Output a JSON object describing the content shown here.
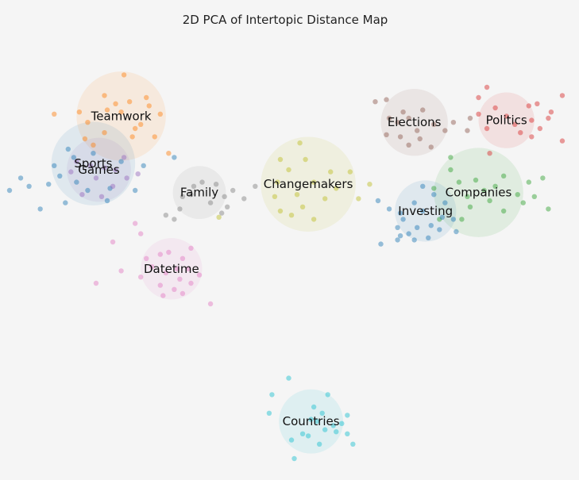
{
  "chart_data": {
    "type": "scatter",
    "title": "2D PCA of Intertopic Distance Map",
    "xlabel": "",
    "ylabel": "",
    "xlim": [
      -10,
      10
    ],
    "ylim": [
      -10,
      10
    ],
    "grid": false,
    "legend": "none",
    "axes_visible": false,
    "clusters": [
      {
        "label": "Teamwork",
        "color": "#ff7f0e",
        "center": [
          -6.0,
          6.6
        ],
        "radius": 1.6
      },
      {
        "label": "Sports",
        "color": "#1f77b4",
        "center": [
          -7.0,
          4.3
        ],
        "radius": 1.5
      },
      {
        "label": "Games",
        "color": "#9467bd",
        "center": [
          -6.8,
          4.0
        ],
        "radius": 1.15
      },
      {
        "label": "Family",
        "color": "#7f7f7f",
        "center": [
          -3.2,
          2.9
        ],
        "radius": 0.95
      },
      {
        "label": "Changemakers",
        "color": "#bcbd22",
        "center": [
          0.7,
          3.3
        ],
        "radius": 1.7
      },
      {
        "label": "Elections",
        "color": "#8c564b",
        "center": [
          4.5,
          6.3
        ],
        "radius": 1.2
      },
      {
        "label": "Politics",
        "color": "#d62728",
        "center": [
          7.8,
          6.4
        ],
        "radius": 1.0
      },
      {
        "label": "Companies",
        "color": "#2ca02c",
        "center": [
          6.8,
          2.9
        ],
        "radius": 1.6
      },
      {
        "label": "Investing",
        "color": "#1f77b4",
        "center": [
          4.9,
          2.0
        ],
        "radius": 1.1
      },
      {
        "label": "Datetime",
        "color": "#e377c2",
        "center": [
          -4.2,
          -0.8
        ],
        "radius": 1.1
      },
      {
        "label": "Countries",
        "color": "#17becf",
        "center": [
          0.8,
          -8.2
        ],
        "radius": 1.15
      }
    ],
    "points": {
      "Teamwork": [
        [
          -5.9,
          8.6
        ],
        [
          -8.4,
          6.7
        ],
        [
          -7.5,
          6.8
        ],
        [
          -6.6,
          7.6
        ],
        [
          -6.5,
          6.9
        ],
        [
          -5.7,
          7.3
        ],
        [
          -5.1,
          7.5
        ],
        [
          -4.6,
          6.7
        ],
        [
          -5.3,
          6.2
        ],
        [
          -4.8,
          5.6
        ],
        [
          -5.6,
          5.6
        ],
        [
          -6.6,
          5.8
        ],
        [
          -7.2,
          6.3
        ],
        [
          -7.3,
          5.5
        ],
        [
          -4.3,
          4.8
        ],
        [
          -5.0,
          7.1
        ],
        [
          -5.5,
          6.0
        ],
        [
          -6.0,
          6.8
        ],
        [
          -7.0,
          5.2
        ],
        [
          -6.2,
          7.2
        ]
      ],
      "Sports": [
        [
          -9.6,
          3.6
        ],
        [
          -9.3,
          3.2
        ],
        [
          -10.0,
          3.0
        ],
        [
          -8.2,
          3.7
        ],
        [
          -7.7,
          4.6
        ],
        [
          -7.6,
          3.4
        ],
        [
          -8.0,
          2.4
        ],
        [
          -8.9,
          2.1
        ],
        [
          -7.9,
          5.0
        ],
        [
          -6.4,
          3.1
        ],
        [
          -6.0,
          4.4
        ],
        [
          -5.5,
          3.0
        ],
        [
          -8.4,
          4.2
        ],
        [
          -7.0,
          4.8
        ],
        [
          -5.2,
          4.2
        ],
        [
          -6.5,
          2.5
        ],
        [
          -4.1,
          4.6
        ],
        [
          -7.2,
          3.0
        ],
        [
          -8.6,
          3.3
        ]
      ],
      "Games": [
        [
          -7.6,
          4.4
        ],
        [
          -6.9,
          3.6
        ],
        [
          -6.2,
          4.0
        ],
        [
          -6.7,
          2.7
        ],
        [
          -7.4,
          2.8
        ],
        [
          -7.8,
          3.9
        ],
        [
          -5.8,
          3.6
        ],
        [
          -6.3,
          3.2
        ],
        [
          -5.9,
          4.6
        ],
        [
          -7.1,
          4.2
        ],
        [
          -6.6,
          4.1
        ],
        [
          -5.4,
          3.8
        ]
      ],
      "Family": [
        [
          -3.4,
          3.2
        ],
        [
          -2.6,
          3.3
        ],
        [
          -3.5,
          2.8
        ],
        [
          -2.8,
          2.4
        ],
        [
          -3.8,
          2.7
        ],
        [
          -2.3,
          2.7
        ],
        [
          -2.0,
          3.0
        ],
        [
          -3.9,
          2.1
        ],
        [
          -2.4,
          1.9
        ],
        [
          -4.1,
          1.6
        ],
        [
          -1.2,
          3.2
        ],
        [
          -4.4,
          1.8
        ],
        [
          -1.6,
          2.6
        ],
        [
          -3.1,
          3.4
        ],
        [
          -2.2,
          2.2
        ]
      ],
      "Changemakers": [
        [
          0.4,
          5.3
        ],
        [
          -0.3,
          4.5
        ],
        [
          0.6,
          4.5
        ],
        [
          0.0,
          4.0
        ],
        [
          1.5,
          3.9
        ],
        [
          0.9,
          3.4
        ],
        [
          2.2,
          3.9
        ],
        [
          -0.4,
          3.4
        ],
        [
          0.3,
          2.8
        ],
        [
          1.3,
          2.6
        ],
        [
          0.5,
          2.2
        ],
        [
          -0.5,
          2.7
        ],
        [
          1.7,
          3.1
        ],
        [
          2.9,
          3.3
        ],
        [
          2.5,
          2.6
        ],
        [
          0.1,
          1.8
        ],
        [
          0.9,
          1.6
        ],
        [
          -0.3,
          2.0
        ],
        [
          -2.5,
          1.7
        ]
      ],
      "Elections": [
        [
          3.1,
          7.3
        ],
        [
          3.6,
          6.5
        ],
        [
          4.1,
          6.8
        ],
        [
          4.3,
          6.5
        ],
        [
          4.8,
          6.9
        ],
        [
          5.2,
          6.2
        ],
        [
          4.6,
          5.9
        ],
        [
          4.0,
          5.6
        ],
        [
          3.9,
          6.3
        ],
        [
          5.6,
          5.9
        ],
        [
          5.9,
          6.3
        ],
        [
          4.7,
          5.5
        ],
        [
          4.3,
          5.2
        ],
        [
          3.5,
          5.7
        ],
        [
          3.5,
          7.4
        ],
        [
          5.1,
          5.1
        ],
        [
          6.4,
          5.9
        ],
        [
          6.5,
          6.5
        ]
      ],
      "Politics": [
        [
          6.8,
          7.5
        ],
        [
          7.4,
          7.0
        ],
        [
          7.8,
          6.6
        ],
        [
          8.1,
          6.2
        ],
        [
          8.6,
          7.1
        ],
        [
          8.7,
          6.4
        ],
        [
          9.3,
          6.5
        ],
        [
          8.3,
          5.8
        ],
        [
          8.7,
          5.6
        ],
        [
          9.0,
          6.0
        ],
        [
          9.8,
          7.6
        ],
        [
          7.1,
          6.0
        ],
        [
          6.8,
          6.7
        ],
        [
          7.1,
          8.0
        ],
        [
          9.4,
          6.8
        ],
        [
          8.9,
          7.2
        ],
        [
          7.2,
          4.8
        ],
        [
          9.8,
          5.4
        ]
      ],
      "Companies": [
        [
          5.8,
          4.0
        ],
        [
          6.1,
          3.4
        ],
        [
          6.7,
          3.5
        ],
        [
          7.0,
          3.0
        ],
        [
          7.4,
          3.2
        ],
        [
          6.4,
          2.7
        ],
        [
          6.5,
          2.2
        ],
        [
          7.2,
          2.5
        ],
        [
          7.7,
          2.0
        ],
        [
          8.2,
          2.8
        ],
        [
          8.6,
          3.4
        ],
        [
          8.8,
          2.7
        ],
        [
          5.2,
          3.1
        ],
        [
          6.2,
          1.6
        ],
        [
          5.4,
          1.6
        ],
        [
          7.7,
          3.7
        ],
        [
          5.8,
          4.6
        ],
        [
          9.3,
          2.1
        ],
        [
          9.1,
          3.6
        ],
        [
          8.4,
          2.4
        ]
      ],
      "Investing": [
        [
          4.5,
          2.4
        ],
        [
          5.2,
          2.8
        ],
        [
          4.8,
          2.0
        ],
        [
          5.5,
          1.7
        ],
        [
          4.1,
          1.6
        ],
        [
          4.6,
          1.2
        ],
        [
          5.1,
          1.3
        ],
        [
          5.9,
          1.6
        ],
        [
          5.4,
          1.1
        ],
        [
          6.0,
          1.0
        ],
        [
          4.0,
          0.8
        ],
        [
          4.5,
          0.6
        ],
        [
          5.0,
          0.7
        ],
        [
          3.9,
          1.2
        ],
        [
          4.3,
          0.9
        ],
        [
          4.0,
          1.9
        ],
        [
          5.6,
          2.4
        ],
        [
          3.2,
          2.5
        ],
        [
          3.6,
          2.1
        ],
        [
          4.8,
          3.2
        ],
        [
          3.3,
          0.4
        ],
        [
          3.9,
          0.6
        ]
      ],
      "Datetime": [
        [
          -4.6,
          -0.1
        ],
        [
          -4.3,
          0.0
        ],
        [
          -3.8,
          -0.3
        ],
        [
          -3.6,
          -0.8
        ],
        [
          -4.0,
          -0.8
        ],
        [
          -4.4,
          -1.0
        ],
        [
          -3.9,
          -1.3
        ],
        [
          -3.5,
          -1.5
        ],
        [
          -4.6,
          -1.6
        ],
        [
          -4.5,
          -2.1
        ],
        [
          -3.2,
          -1.1
        ],
        [
          -4.9,
          -0.7
        ],
        [
          -5.1,
          -0.3
        ],
        [
          -6.0,
          -0.9
        ],
        [
          -5.3,
          -1.2
        ],
        [
          -3.8,
          -2.0
        ],
        [
          -5.3,
          0.9
        ],
        [
          -5.5,
          1.4
        ],
        [
          -6.3,
          0.5
        ],
        [
          -6.9,
          -1.5
        ],
        [
          -2.8,
          -2.5
        ],
        [
          -3.5,
          0.2
        ],
        [
          -4.1,
          -1.8
        ]
      ],
      "Countries": [
        [
          0.0,
          -6.1
        ],
        [
          -0.6,
          -6.9
        ],
        [
          0.9,
          -7.5
        ],
        [
          1.4,
          -6.9
        ],
        [
          1.2,
          -7.8
        ],
        [
          0.8,
          -8.1
        ],
        [
          1.3,
          -8.6
        ],
        [
          0.7,
          -8.9
        ],
        [
          1.1,
          -9.3
        ],
        [
          0.5,
          -8.8
        ],
        [
          0.1,
          -9.1
        ],
        [
          1.7,
          -8.7
        ],
        [
          1.9,
          -8.3
        ],
        [
          -0.7,
          -7.8
        ],
        [
          2.1,
          -8.8
        ],
        [
          2.3,
          -9.3
        ],
        [
          2.1,
          -7.9
        ],
        [
          0.2,
          -10.0
        ],
        [
          1.6,
          -8.4
        ],
        [
          1.0,
          -8.2
        ]
      ]
    }
  }
}
